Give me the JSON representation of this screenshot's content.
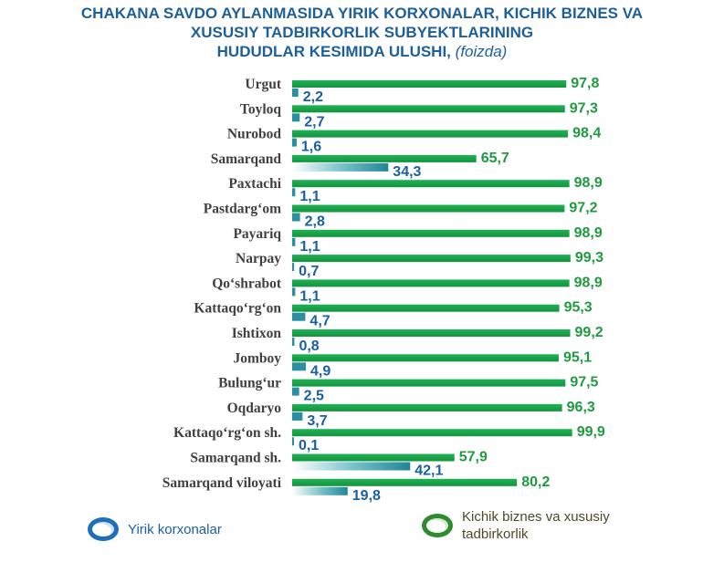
{
  "title_lines": [
    "CHAKANA SAVDO AYLANMASIDA YIRIK KORXONALAR, KICHIK BIZNES VA",
    "XUSUSIY TADBIRKORLIK SUBYEKTLARINING",
    "HUDUDLAR KESIMIDA ULUSHI,"
  ],
  "title_unit": "(foizda)",
  "legend": {
    "yirik": "Yirik korxonalar",
    "kichik": "Kichik biznes va xususiy tadbirkorlik"
  },
  "colors": {
    "yirik": "#2a8fa0",
    "kichik": "#1aa34a",
    "yirik_label": "#1a5fa5",
    "kichik_label": "#1f9a3e",
    "category_label": "#404040",
    "title": "#1f5f99"
  },
  "chart_data": {
    "type": "bar",
    "orientation": "horizontal",
    "categories": [
      "Urgut",
      "Toyloq",
      "Nurobod",
      "Samarqand",
      "Paxtachi",
      "Pastdarg‘om",
      "Payariq",
      "Narpay",
      "Qo‘shrabot",
      "Kattaqo‘rg‘on",
      "Ishtixon",
      "Jomboy",
      "Bulung‘ur",
      "Oqdaryo",
      "Kattaqo‘rg‘on  sh.",
      "Samarqand sh.",
      "Samarqand viloyati"
    ],
    "series": [
      {
        "name": "Kichik biznes va xususiy tadbirkorlik",
        "values": [
          97.8,
          97.3,
          98.4,
          65.7,
          98.9,
          97.2,
          98.9,
          99.3,
          98.9,
          95.3,
          99.2,
          95.1,
          97.5,
          96.3,
          99.9,
          57.9,
          80.2
        ],
        "labels": [
          "97,8",
          "97,3",
          "98,4",
          "65,7",
          "98,9",
          "97,2",
          "98,9",
          "99,3",
          "98,9",
          "95,3",
          "99,2",
          "95,1",
          "97,5",
          "96,3",
          "99,9",
          "57,9",
          "80,2"
        ]
      },
      {
        "name": "Yirik korxonalar",
        "values": [
          2.2,
          2.7,
          1.6,
          34.3,
          1.1,
          2.8,
          1.1,
          0.7,
          1.1,
          4.7,
          0.8,
          4.9,
          2.5,
          3.7,
          0.1,
          42.1,
          19.8
        ],
        "labels": [
          "2,2",
          "2,7",
          "1,6",
          "34,3",
          "1,1",
          "2,8",
          "1,1",
          "0,7",
          "1,1",
          "4,7",
          "0,8",
          "4,9",
          "2,5",
          "3,7",
          "0,1",
          "42,1",
          "19,8"
        ]
      }
    ],
    "xlim": [
      0,
      100
    ],
    "grid": false
  }
}
